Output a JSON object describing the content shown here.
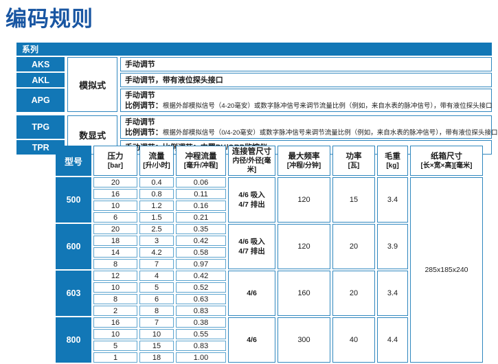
{
  "page_title": "编码规则",
  "colors": {
    "brand_blue": "#1277b6",
    "title_blue": "#1956a2",
    "cell_border_blue": "#2e86be",
    "light_border_blue": "#5aa3ce",
    "text": "#1a1a1a"
  },
  "series_table": {
    "header": "系列",
    "groups": [
      {
        "type_label": "模拟式",
        "rows": [
          {
            "code": "AKS",
            "lines": [
              {
                "prefix": "手动调节",
                "rest": ""
              }
            ]
          },
          {
            "code": "AKL",
            "lines": [
              {
                "prefix": "手动调节，带有液位探头接口",
                "rest": ""
              }
            ]
          },
          {
            "code": "APG",
            "lines": [
              {
                "prefix": "手动调节",
                "rest": ""
              },
              {
                "prefix": "比例调节：",
                "rest": "根据外部模拟信号（4-20毫安）或数字脉冲信号来调节流量比例（例如，来自水表的脉冲信号），带有液位探头接口"
              }
            ]
          }
        ]
      },
      {
        "type_label": "数显式",
        "rows": [
          {
            "code": "TPG",
            "lines": [
              {
                "prefix": "手动调节",
                "rest": ""
              },
              {
                "prefix": "比例调节：",
                "rest": "根据外部模拟信号（0/4-20毫安）或数字脉冲信号来调节流量比例（例如，来自水表的脉冲信号），带有液位探头接口"
              }
            ]
          },
          {
            "code": "TPR",
            "lines": [
              {
                "prefix": "手动调节；比例调节：内置PH/ORP监控仪",
                "rest": ""
              }
            ]
          }
        ]
      }
    ]
  },
  "spec_table": {
    "columns": [
      {
        "key": "model",
        "title": "型号",
        "sub": ""
      },
      {
        "key": "pressure",
        "title": "压力",
        "sub": "[bar]"
      },
      {
        "key": "flow",
        "title": "流量",
        "sub": "[升/小时]"
      },
      {
        "key": "stroke-volume",
        "title": "冲程流量",
        "sub": "[毫升/冲程]"
      },
      {
        "key": "connection",
        "title": "连接管尺寸",
        "sub": "内径/外径[毫米]"
      },
      {
        "key": "max-frequency",
        "title": "最大频率",
        "sub": "[冲程/分钟]"
      },
      {
        "key": "power",
        "title": "功率",
        "sub": "[瓦]"
      },
      {
        "key": "gross-weight",
        "title": "毛重",
        "sub": "[kg]"
      },
      {
        "key": "carton-size",
        "title": "纸箱尺寸",
        "sub": "[长×宽×高][毫米]"
      }
    ],
    "carton_size": "285x185x240",
    "models": [
      {
        "model": "500",
        "rows": [
          [
            "20",
            "0.4",
            "0.06"
          ],
          [
            "16",
            "0.8",
            "0.11"
          ],
          [
            "10",
            "1.2",
            "0.16"
          ],
          [
            "6",
            "1.5",
            "0.21"
          ]
        ],
        "connection_lines": [
          "4/6 吸入",
          "4/7 排出"
        ],
        "max_frequency": "120",
        "power": "15",
        "gross_weight": "3.4"
      },
      {
        "model": "600",
        "rows": [
          [
            "20",
            "2.5",
            "0.35"
          ],
          [
            "18",
            "3",
            "0.42"
          ],
          [
            "14",
            "4.2",
            "0.58"
          ],
          [
            "8",
            "7",
            "0.97"
          ]
        ],
        "connection_lines": [
          "4/6 吸入",
          "4/7 排出"
        ],
        "max_frequency": "120",
        "power": "20",
        "gross_weight": "3.9"
      },
      {
        "model": "603",
        "rows": [
          [
            "12",
            "4",
            "0.42"
          ],
          [
            "10",
            "5",
            "0.52"
          ],
          [
            "8",
            "6",
            "0.63"
          ],
          [
            "2",
            "8",
            "0.83"
          ]
        ],
        "connection_lines": [
          "4/6"
        ],
        "max_frequency": "160",
        "power": "20",
        "gross_weight": "3.4"
      },
      {
        "model": "800",
        "rows": [
          [
            "16",
            "7",
            "0.38"
          ],
          [
            "10",
            "10",
            "0.55"
          ],
          [
            "5",
            "15",
            "0.83"
          ],
          [
            "1",
            "18",
            "1.00"
          ]
        ],
        "connection_lines": [
          "4/6"
        ],
        "max_frequency": "300",
        "power": "40",
        "gross_weight": "4.4"
      }
    ]
  }
}
